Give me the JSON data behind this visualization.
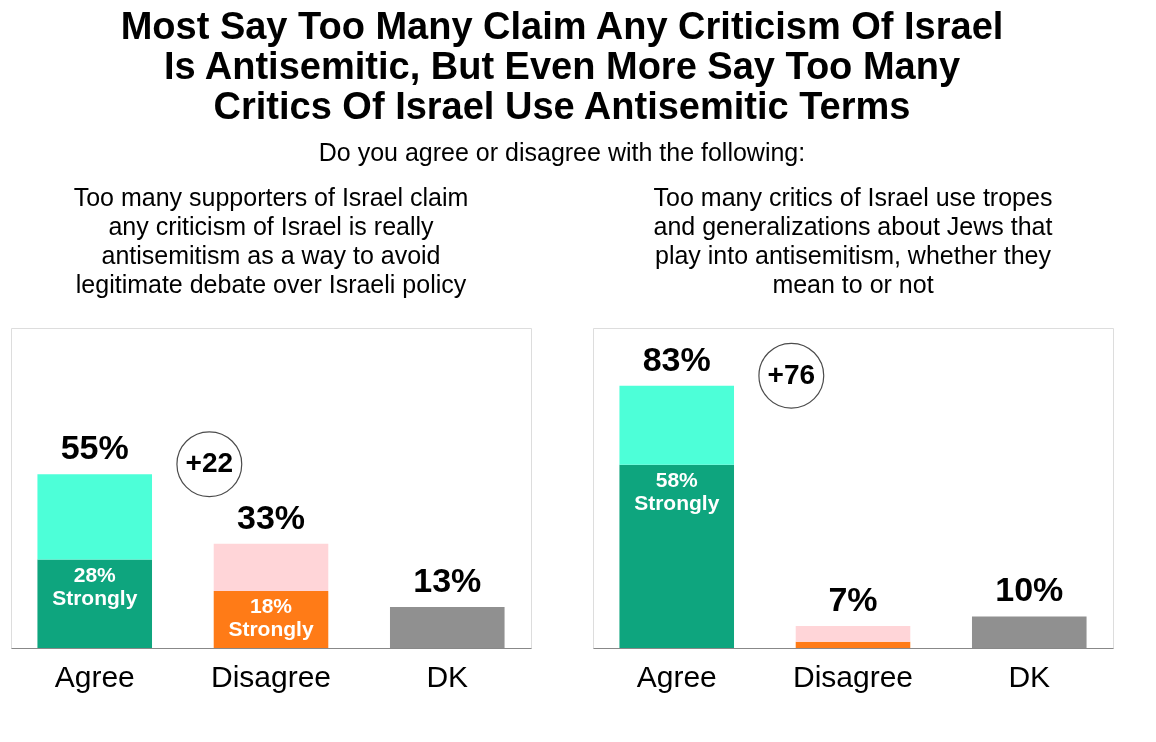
{
  "chart_data": [
    {
      "type": "bar",
      "title": "Most Say Too Many Claim Any Criticism Of Israel Is Antisemitic, But Even More Say Too Many Critics Of Israel Use Antisemitic Terms",
      "subtitle": "Do you agree or disagree with the following:",
      "annotations": [
        "Too many supporters of Israel claim any criticism of Israel is really antisemitism as a way to avoid legitimate debate over Israeli policy",
        "+22"
      ],
      "categories": [
        "Agree",
        "Disagree",
        "DK"
      ],
      "stacked": true,
      "series": [
        {
          "values": [
            28,
            18,
            13
          ],
          "colors": [
            "#0ea57e",
            "#ff7b17",
            "#909090"
          ],
          "value_labels": [
            "28% Strongly",
            "18% Strongly",
            null
          ]
        },
        {
          "values": [
            27,
            15,
            null
          ],
          "colors": [
            "#4dffd8",
            "#ffd5d8",
            null
          ]
        }
      ],
      "totals": [
        "55%",
        "33%",
        "13%"
      ]
    },
    {
      "type": "bar",
      "title": "Too many critics of Israel use tropes and generalizations about Jews that play into antisemitism, whether they mean to or not",
      "annotations": [
        "+76"
      ],
      "categories": [
        "Agree",
        "Disagree",
        "DK"
      ],
      "stacked": true,
      "series": [
        {
          "values": [
            58,
            2,
            10
          ],
          "colors": [
            "#0ea57e",
            "#ff7b17",
            "#909090"
          ],
          "value_labels": [
            "58% Strongly",
            null,
            null
          ]
        },
        {
          "values": [
            25,
            5,
            null
          ],
          "colors": [
            "#4dffd8",
            "#ffd5d8",
            null
          ]
        }
      ],
      "totals": [
        "83%",
        "7%",
        "10%"
      ]
    }
  ]
}
